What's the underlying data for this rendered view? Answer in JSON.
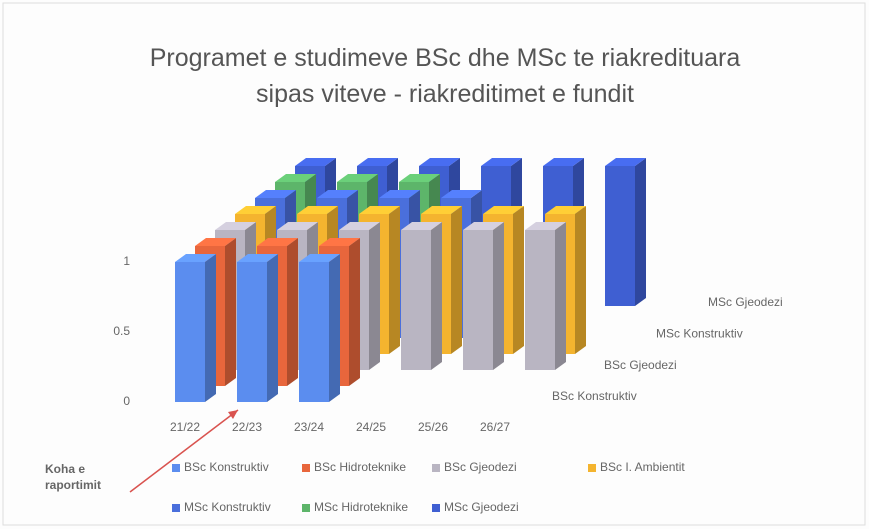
{
  "chart_data": {
    "type": "bar3d",
    "title": "Programet e studimeve BSc dhe MSc te riakredituara sipas viteve - riakreditimet e fundit",
    "categories": [
      "21/22",
      "22/23",
      "23/24",
      "24/25",
      "25/26",
      "26/27"
    ],
    "series": [
      {
        "name": "BSc Konstruktiv",
        "color": "#5b8def",
        "values": [
          1,
          1,
          1,
          null,
          null,
          null
        ]
      },
      {
        "name": "BSc Hidroteknike",
        "color": "#e8663c",
        "values": [
          1,
          1,
          1,
          null,
          null,
          null
        ]
      },
      {
        "name": "BSc Gjeodezi",
        "color": "#b9b5c2",
        "values": [
          1,
          1,
          1,
          1,
          1,
          1
        ]
      },
      {
        "name": "BSc I. Ambientit",
        "color": "#f4b42f",
        "values": [
          1,
          1,
          1,
          1,
          1,
          1
        ]
      },
      {
        "name": "MSc Konstruktiv",
        "color": "#4a6fdc",
        "values": [
          1,
          1,
          1,
          1,
          null,
          null
        ]
      },
      {
        "name": "MSc Hidroteknike",
        "color": "#5db56a",
        "values": [
          1,
          1,
          1,
          null,
          null,
          null
        ]
      },
      {
        "name": "MSc Gjeodezi",
        "color": "#3f5fd2",
        "values": [
          1,
          1,
          1,
          1,
          1,
          1
        ]
      }
    ],
    "ylim": [
      0,
      1.2
    ],
    "yticks": [
      0,
      0.5,
      1
    ],
    "annotation": "Koha e raportimit"
  }
}
